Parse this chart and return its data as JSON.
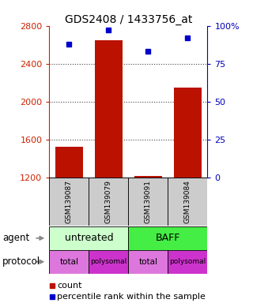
{
  "title": "GDS2408 / 1433756_at",
  "samples": [
    "GSM139087",
    "GSM139079",
    "GSM139091",
    "GSM139084"
  ],
  "bar_values": [
    1520,
    2650,
    1215,
    2150
  ],
  "dot_values": [
    88,
    97,
    83,
    92
  ],
  "ylim_left": [
    1200,
    2800
  ],
  "ylim_right": [
    0,
    100
  ],
  "yticks_left": [
    1200,
    1600,
    2000,
    2400,
    2800
  ],
  "yticks_right": [
    0,
    25,
    50,
    75,
    100
  ],
  "ytick_labels_right": [
    "0",
    "25",
    "50",
    "75",
    "100%"
  ],
  "bar_color": "#bb1100",
  "dot_color": "#0000cc",
  "agent_colors": [
    "#ccffcc",
    "#44ee44"
  ],
  "protocol_colors": [
    "#dd77dd",
    "#cc33cc"
  ],
  "grid_color": "#444444",
  "tick_color_left": "#cc2200",
  "tick_color_right": "#0000bb",
  "legend_count": "count",
  "legend_pct": "percentile rank within the sample",
  "label_agent": "agent",
  "label_protocol": "protocol",
  "sample_box_color": "#cccccc",
  "bar_width": 0.7
}
